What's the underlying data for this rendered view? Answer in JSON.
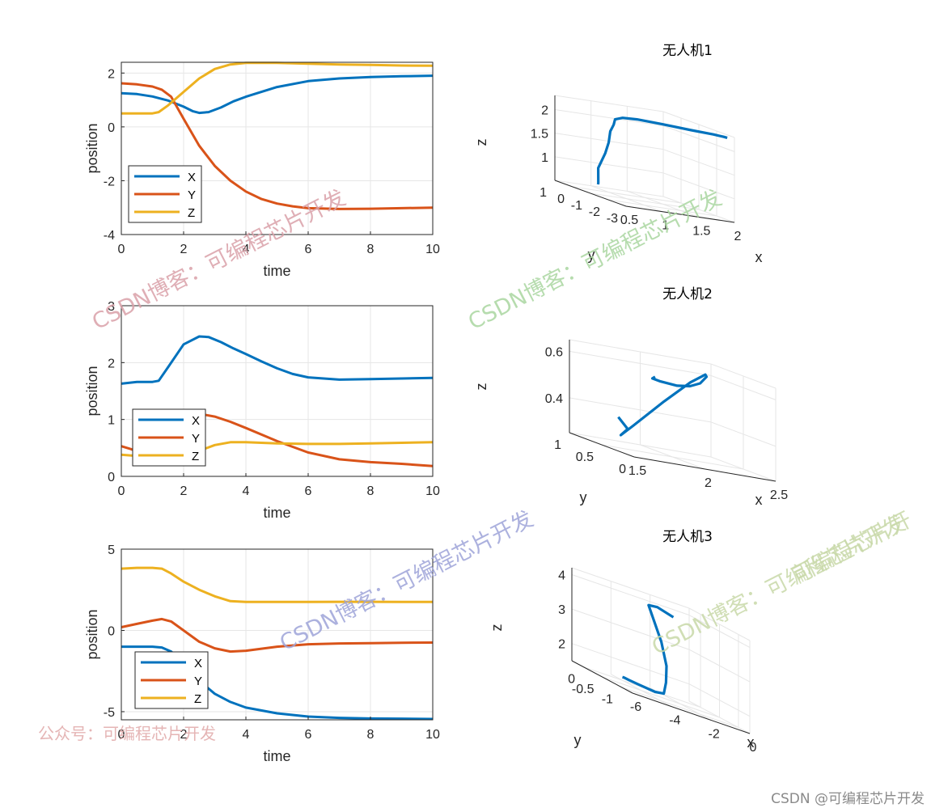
{
  "colors": {
    "x": "#0072BD",
    "y": "#D95319",
    "z": "#EDB120",
    "grid": "#e6e6e6",
    "axis": "#262626"
  },
  "chart_data": [
    {
      "type": "line",
      "title": "",
      "xlabel": "time",
      "ylabel": "position",
      "xlim": [
        0,
        10
      ],
      "ylim": [
        -4,
        2.4
      ],
      "xticks": [
        0,
        2,
        4,
        6,
        8,
        10
      ],
      "yticks": [
        -4,
        -2,
        0,
        2
      ],
      "grid": true,
      "legend": "bottom-left",
      "series": [
        {
          "name": "X",
          "x": [
            0,
            0.5,
            1,
            1.5,
            2,
            2.3,
            2.5,
            2.8,
            3.2,
            3.6,
            4,
            5,
            6,
            7,
            8,
            9,
            10
          ],
          "y": [
            1.25,
            1.22,
            1.13,
            0.98,
            0.75,
            0.58,
            0.52,
            0.55,
            0.72,
            0.95,
            1.12,
            1.48,
            1.7,
            1.8,
            1.85,
            1.88,
            1.9
          ]
        },
        {
          "name": "Y",
          "x": [
            0,
            0.5,
            1,
            1.3,
            1.6,
            2,
            2.5,
            3,
            3.5,
            4,
            4.5,
            5,
            5.5,
            6,
            7,
            8,
            9,
            10
          ],
          "y": [
            1.62,
            1.58,
            1.5,
            1.38,
            1.12,
            0.3,
            -0.7,
            -1.45,
            -2.0,
            -2.4,
            -2.68,
            -2.85,
            -2.95,
            -3.02,
            -3.05,
            -3.04,
            -3.02,
            -3.0
          ]
        },
        {
          "name": "Z",
          "x": [
            0,
            0.5,
            1,
            1.2,
            1.5,
            2,
            2.5,
            3,
            3.5,
            4,
            5,
            6,
            7,
            8,
            9,
            10
          ],
          "y": [
            0.5,
            0.5,
            0.5,
            0.55,
            0.8,
            1.3,
            1.8,
            2.15,
            2.32,
            2.38,
            2.38,
            2.35,
            2.32,
            2.3,
            2.28,
            2.27
          ]
        }
      ]
    },
    {
      "type": "line",
      "title": "",
      "xlabel": "time",
      "ylabel": "position",
      "xlim": [
        0,
        10
      ],
      "ylim": [
        0,
        3
      ],
      "xticks": [
        0,
        2,
        4,
        6,
        8,
        10
      ],
      "yticks": [
        0,
        1,
        2,
        3
      ],
      "grid": true,
      "legend": "bottom-left",
      "series": [
        {
          "name": "X",
          "x": [
            0,
            0.5,
            1,
            1.2,
            1.5,
            2,
            2.5,
            2.8,
            3.2,
            3.6,
            4,
            4.5,
            5,
            5.5,
            6,
            7,
            8,
            9,
            10
          ],
          "y": [
            1.63,
            1.66,
            1.66,
            1.68,
            1.92,
            2.32,
            2.46,
            2.45,
            2.36,
            2.25,
            2.15,
            2.02,
            1.9,
            1.8,
            1.74,
            1.7,
            1.71,
            1.72,
            1.73
          ]
        },
        {
          "name": "Y",
          "x": [
            0,
            0.3,
            0.6,
            1,
            1.5,
            2,
            2.5,
            3,
            3.5,
            4,
            5,
            6,
            7,
            8,
            9,
            10
          ],
          "y": [
            0.53,
            0.48,
            0.42,
            0.6,
            0.9,
            1.07,
            1.1,
            1.05,
            0.96,
            0.85,
            0.62,
            0.42,
            0.3,
            0.25,
            0.22,
            0.18
          ]
        },
        {
          "name": "Z",
          "x": [
            0,
            0.5,
            1,
            1.5,
            2,
            2.5,
            3,
            3.5,
            4,
            5,
            6,
            7,
            8,
            9,
            10
          ],
          "y": [
            0.38,
            0.36,
            0.34,
            0.3,
            0.33,
            0.45,
            0.55,
            0.6,
            0.6,
            0.58,
            0.57,
            0.57,
            0.58,
            0.59,
            0.6
          ]
        }
      ]
    },
    {
      "type": "line",
      "title": "",
      "xlabel": "time",
      "ylabel": "position",
      "xlim": [
        0,
        10
      ],
      "ylim": [
        -5.5,
        5
      ],
      "xticks": [
        0,
        2,
        4,
        6,
        8,
        10
      ],
      "yticks": [
        -5,
        0,
        5
      ],
      "yticklabels": [
        "-5",
        "0",
        "5"
      ],
      "grid": true,
      "legend": "bottom-left",
      "series": [
        {
          "name": "X",
          "x": [
            0,
            0.5,
            1,
            1.3,
            1.6,
            2,
            2.5,
            3,
            3.5,
            4,
            5,
            6,
            7,
            8,
            9,
            10
          ],
          "y": [
            -1.0,
            -1.0,
            -1.0,
            -1.05,
            -1.3,
            -2.0,
            -3.1,
            -3.9,
            -4.4,
            -4.75,
            -5.1,
            -5.3,
            -5.38,
            -5.42,
            -5.43,
            -5.45
          ]
        },
        {
          "name": "Y",
          "x": [
            0,
            0.5,
            1,
            1.3,
            1.6,
            2,
            2.5,
            3,
            3.5,
            4,
            5,
            6,
            7,
            8,
            9,
            10
          ],
          "y": [
            0.2,
            0.4,
            0.6,
            0.7,
            0.55,
            0.0,
            -0.7,
            -1.1,
            -1.3,
            -1.25,
            -1.0,
            -0.85,
            -0.8,
            -0.78,
            -0.76,
            -0.75
          ]
        },
        {
          "name": "Z",
          "x": [
            0,
            0.5,
            1,
            1.3,
            1.6,
            2,
            2.5,
            3,
            3.5,
            4,
            5,
            6,
            7,
            8,
            9,
            10
          ],
          "y": [
            3.8,
            3.85,
            3.85,
            3.8,
            3.5,
            3.0,
            2.5,
            2.1,
            1.8,
            1.75,
            1.75,
            1.75,
            1.76,
            1.76,
            1.75,
            1.75
          ]
        }
      ]
    },
    {
      "type": "line3d",
      "title": "无人机1",
      "xlabel": "x",
      "ylabel": "y",
      "zlabel": "z",
      "xlim": [
        0.5,
        2
      ],
      "ylim": [
        -3,
        1
      ],
      "zlim": [
        0.5,
        2.3
      ],
      "xticks": [
        0.5,
        1,
        1.5,
        2
      ],
      "yticks": [
        -3,
        -2,
        -1,
        0,
        1
      ],
      "zticks": [
        1,
        1.5,
        2
      ],
      "series": [
        {
          "name": "trajectory",
          "x": [
            1.25,
            1.2,
            1.1,
            1.0,
            0.85,
            0.7,
            0.6,
            0.52,
            0.55,
            0.7,
            1.0,
            1.4,
            1.7,
            1.85,
            1.9
          ],
          "y": [
            1.62,
            1.4,
            1.0,
            0.2,
            -0.6,
            -1.3,
            -1.9,
            -2.3,
            -2.6,
            -2.8,
            -2.95,
            -3.02,
            -3.03,
            -3.01,
            -3.0
          ],
          "z": [
            0.5,
            0.55,
            0.9,
            1.3,
            1.6,
            1.9,
            2.1,
            2.25,
            2.33,
            2.36,
            2.35,
            2.32,
            2.3,
            2.28,
            2.27
          ]
        }
      ]
    },
    {
      "type": "line3d",
      "title": "无人机2",
      "xlabel": "x",
      "ylabel": "y",
      "zlabel": "z",
      "xlim": [
        1.5,
        2.5
      ],
      "ylim": [
        0,
        1
      ],
      "zlim": [
        0.25,
        0.65
      ],
      "xticks": [
        1.5,
        2,
        2.5
      ],
      "yticks": [
        0,
        0.5,
        1
      ],
      "zticks": [
        0.4,
        0.6
      ],
      "series": [
        {
          "name": "trajectory",
          "x": [
            1.63,
            1.66,
            1.68,
            1.9,
            2.2,
            2.4,
            2.46,
            2.4,
            2.25,
            2.1,
            1.95,
            1.8,
            1.72,
            1.73
          ],
          "y": [
            0.53,
            0.45,
            0.6,
            0.9,
            1.07,
            1.1,
            1.0,
            0.85,
            0.62,
            0.45,
            0.32,
            0.25,
            0.2,
            0.18
          ],
          "z": [
            0.38,
            0.34,
            0.3,
            0.33,
            0.45,
            0.55,
            0.6,
            0.6,
            0.58,
            0.57,
            0.57,
            0.58,
            0.59,
            0.6
          ]
        }
      ]
    },
    {
      "type": "line3d",
      "title": "无人机3",
      "xlabel": "x",
      "ylabel": "y",
      "zlabel": "z",
      "xlim": [
        -6,
        0
      ],
      "ylim": [
        -1.3,
        0.3
      ],
      "zlim": [
        1.5,
        4.2
      ],
      "xticks": [
        -6,
        -4,
        -2,
        0
      ],
      "yticks": [
        -1,
        -0.5,
        0
      ],
      "zticks": [
        2,
        3,
        4
      ],
      "series": [
        {
          "name": "trajectory",
          "x": [
            -1.0,
            -1.05,
            -1.3,
            -2.0,
            -3.1,
            -3.9,
            -4.4,
            -4.75,
            -5.1,
            -5.3,
            -5.42,
            -5.45
          ],
          "y": [
            0.2,
            0.6,
            0.7,
            0.0,
            -0.7,
            -1.1,
            -1.3,
            -1.25,
            -1.0,
            -0.85,
            -0.78,
            -0.75
          ],
          "z": [
            3.8,
            3.85,
            3.8,
            3.0,
            2.5,
            2.1,
            1.8,
            1.75,
            1.75,
            1.75,
            1.76,
            1.75
          ]
        }
      ]
    }
  ],
  "watermarks": [
    {
      "text": "CSDN博客：可编程芯片开发",
      "color": "#d9a0a8"
    },
    {
      "text": "CSDN博客：可编程芯片开发",
      "color": "#a9d6a0"
    },
    {
      "text": "CSDN博客：可编程芯片开发",
      "color": "#9ea3d8"
    },
    {
      "text": "CSDN博客：可编程芯片开发",
      "color": "#c8d8a8"
    },
    {
      "text": "可编程芯片开",
      "color": "#c8d8a8"
    },
    {
      "text": "公众号：可编程芯片开发",
      "color": "#e0a8a8"
    }
  ],
  "footer": "CSDN @可编程芯片开发"
}
